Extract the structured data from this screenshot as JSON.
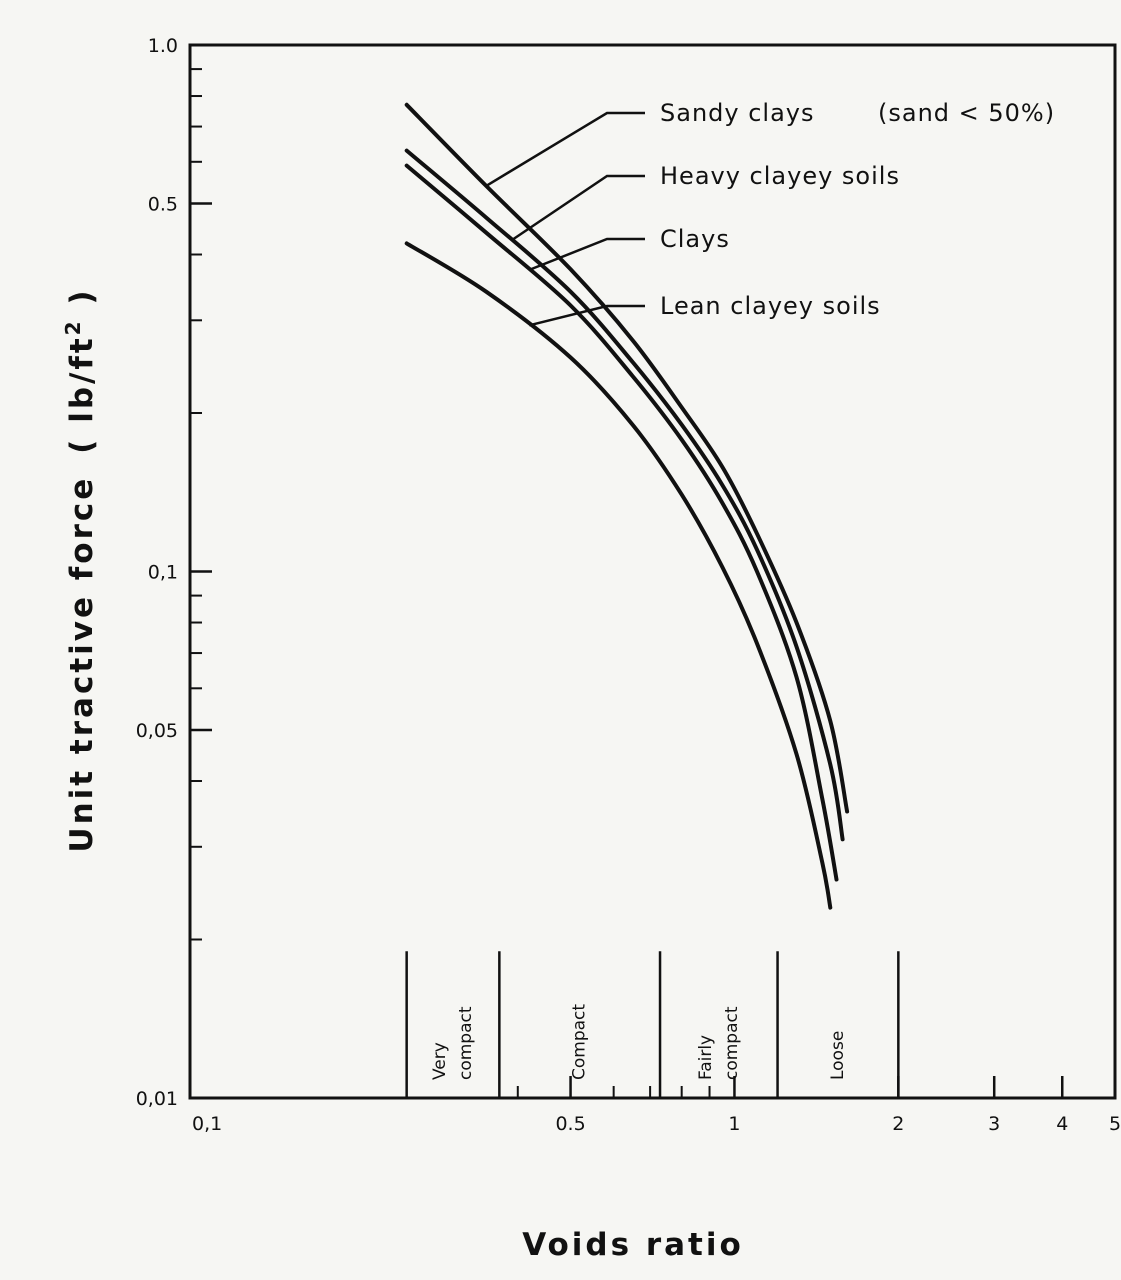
{
  "chart_data": {
    "type": "line",
    "xlabel": "Voids ratio",
    "ylabel": "Unit tractive force",
    "ylabel_unit": "( lb/ft",
    "ylabel_unit_sup": "2",
    "ylabel_unit_close": " )",
    "xscale": "log",
    "yscale": "log",
    "xlim": [
      0.1,
      5
    ],
    "ylim": [
      0.01,
      1.0
    ],
    "grid": false,
    "legend_placement": "top-right, leader lines to curves",
    "x_ticks": [
      {
        "value": 0.1,
        "label": "0,1"
      },
      {
        "value": 0.5,
        "label": "0.5"
      },
      {
        "value": 1,
        "label": "1"
      },
      {
        "value": 2,
        "label": "2"
      },
      {
        "value": 3,
        "label": "3"
      },
      {
        "value": 4,
        "label": "4"
      },
      {
        "value": 5,
        "label": "5"
      }
    ],
    "x_minor_ticks": [
      0.4,
      0.6,
      0.7,
      0.8,
      0.9
    ],
    "y_ticks": [
      {
        "value": 0.01,
        "label": "0,01"
      },
      {
        "value": 0.05,
        "label": "0,05"
      },
      {
        "value": 0.1,
        "label": "0,1"
      },
      {
        "value": 0.5,
        "label": "0.5"
      },
      {
        "value": 1.0,
        "label": "1.0"
      }
    ],
    "y_minor_ticks": [
      0.02,
      0.03,
      0.04,
      0.06,
      0.07,
      0.08,
      0.09,
      0.2,
      0.3,
      0.4,
      0.6,
      0.7,
      0.8,
      0.9
    ],
    "series": [
      {
        "name": "Sandy clays",
        "suffix": "(sand < 50%)",
        "x": [
          0.25,
          0.35,
          0.5,
          0.65,
          0.8,
          0.95,
          1.1,
          1.3,
          1.5,
          1.61
        ],
        "y": [
          0.77,
          0.54,
          0.375,
          0.275,
          0.205,
          0.158,
          0.118,
          0.08,
          0.052,
          0.035
        ]
      },
      {
        "name": "Heavy clayey soils",
        "x": [
          0.25,
          0.35,
          0.5,
          0.65,
          0.8,
          0.95,
          1.1,
          1.3,
          1.5,
          1.58
        ],
        "y": [
          0.63,
          0.47,
          0.34,
          0.25,
          0.19,
          0.146,
          0.11,
          0.072,
          0.043,
          0.031
        ]
      },
      {
        "name": "Clays",
        "x": [
          0.25,
          0.35,
          0.5,
          0.65,
          0.8,
          0.95,
          1.1,
          1.3,
          1.45,
          1.54
        ],
        "y": [
          0.59,
          0.44,
          0.32,
          0.235,
          0.178,
          0.135,
          0.1,
          0.063,
          0.037,
          0.026
        ]
      },
      {
        "name": "Lean clayey soils",
        "x": [
          0.25,
          0.35,
          0.5,
          0.65,
          0.8,
          0.95,
          1.1,
          1.3,
          1.45,
          1.5
        ],
        "y": [
          0.42,
          0.34,
          0.255,
          0.19,
          0.14,
          0.102,
          0.073,
          0.045,
          0.028,
          0.023
        ]
      }
    ],
    "zones": [
      {
        "label_lines": [
          "Very",
          "compact"
        ],
        "x_start": 0.25,
        "x_end": 0.37
      },
      {
        "label_lines": [
          "Compact"
        ],
        "x_start": 0.37,
        "x_end": 0.73
      },
      {
        "label_lines": [
          "Fairly",
          "compact"
        ],
        "x_start": 0.73,
        "x_end": 1.2
      },
      {
        "label_lines": [
          "Loose"
        ],
        "x_start": 1.2,
        "x_end": 2.0
      }
    ],
    "zone_boundary_top": 0.019
  }
}
